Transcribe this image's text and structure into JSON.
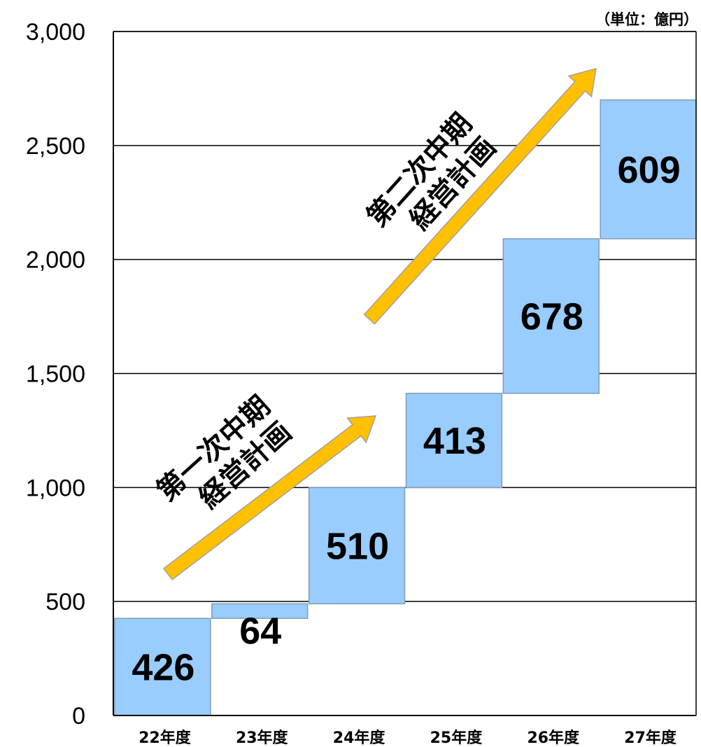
{
  "chart_data": {
    "type": "waterfall",
    "unit_label": "（単位：億円）",
    "categories": [
      "22年度",
      "23年度",
      "24年度",
      "25年度",
      "26年度",
      "27年度"
    ],
    "values": [
      426,
      64,
      510,
      413,
      678,
      609
    ],
    "ylim": [
      0,
      3000
    ],
    "yticks": [
      0,
      500,
      1000,
      1500,
      2000,
      2500,
      3000
    ],
    "ytick_labels": [
      "0",
      "500",
      "1,000",
      "1,500",
      "2,000",
      "2,500",
      "3,000"
    ],
    "grid": true,
    "bar_color": "#99CCFF",
    "bar_border_color": "#7F9DB9",
    "arrow_color": "#FFC000",
    "annotations": [
      {
        "line1": "第一次中期",
        "line2": "経営計画"
      },
      {
        "line1": "第二次中期",
        "line2": "経営計画"
      }
    ]
  }
}
